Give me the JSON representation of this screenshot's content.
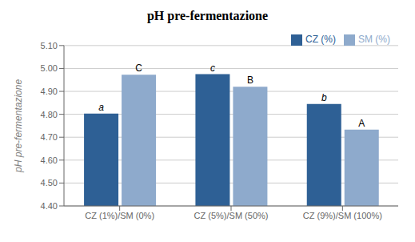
{
  "chart_data": {
    "type": "bar",
    "title": "pH pre-fermentazione",
    "ylabel": "pH pre-fermentazione",
    "categories": [
      "CZ (1%)/SM (0%)",
      "CZ (5%)/SM (50%)",
      "CZ (9%)/SM (100%)"
    ],
    "series": [
      {
        "name": "CZ (%)",
        "color": "#2E6095",
        "values": [
          4.803,
          4.975,
          4.845
        ],
        "annotations": [
          "a",
          "c",
          "b"
        ]
      },
      {
        "name": "SM (%)",
        "color": "#8EAACC",
        "values": [
          4.973,
          4.92,
          4.733
        ],
        "annotations": [
          "C",
          "B",
          "A"
        ]
      }
    ],
    "ylim": [
      4.4,
      5.1
    ],
    "yticks": [
      {
        "value": 4.4,
        "label": "4.40"
      },
      {
        "value": 4.5,
        "label": "4.50"
      },
      {
        "value": 4.6,
        "label": "4.60"
      },
      {
        "value": 4.7,
        "label": "4.70"
      },
      {
        "value": 4.8,
        "label": "4.80"
      },
      {
        "value": 4.9,
        "label": "4.90"
      },
      {
        "value": 5.0,
        "label": "5.00"
      },
      {
        "value": 5.1,
        "label": "5.10"
      }
    ],
    "grid": true,
    "legend": "upper right"
  }
}
